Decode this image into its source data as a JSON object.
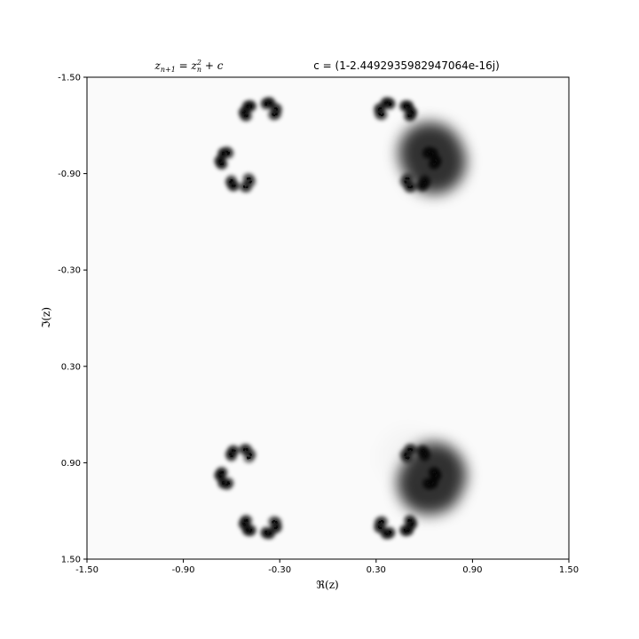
{
  "chart_data": {
    "type": "heatmap",
    "title_left": "z_{n+1} = z_n^2 + c",
    "title_left_parts": {
      "z1": "z",
      "sub1": "n+1",
      "eq": " = ",
      "z2": "z",
      "sub2": "n",
      "sup2": "2",
      "plus": " + ",
      "c": "c"
    },
    "title_right": "c = (1-2.4492935982947064e-16j)",
    "xlabel": "ℜ(z)",
    "ylabel": "ℑ(z)",
    "xlim": [
      -1.5,
      1.5
    ],
    "ylim": [
      -1.5,
      1.5
    ],
    "xticks": [
      "-1.50",
      "-0.90",
      "-0.30",
      "0.30",
      "0.90",
      "1.50"
    ],
    "yticks": [
      "-1.50",
      "-0.90",
      "-0.30",
      "0.30",
      "0.90",
      "1.50"
    ],
    "y_axis_inverted": true,
    "colormap": "gray_r",
    "grid": false,
    "legend": "none",
    "c_real": 1,
    "c_imag": -2.4492935982947064e-16
  },
  "colors": {
    "background": "#ffffff",
    "axes_face": "#fafafa",
    "fractal": "#000000",
    "spine": "#000000"
  }
}
